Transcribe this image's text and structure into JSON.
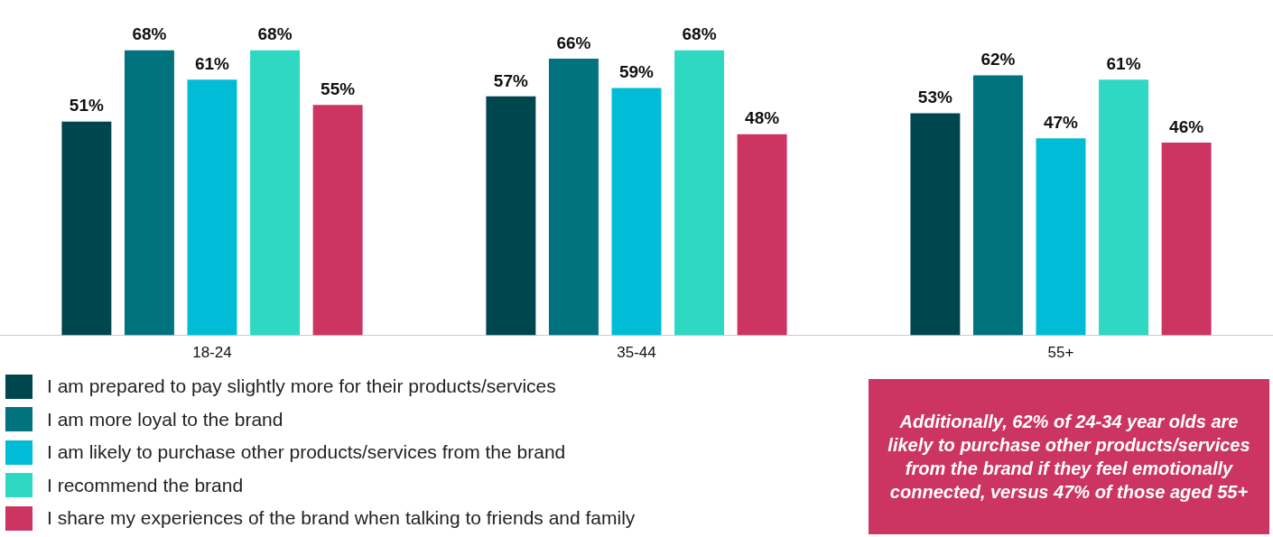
{
  "chart_data": {
    "type": "bar",
    "categories": [
      "18-24",
      "35-44",
      "55+"
    ],
    "series": [
      {
        "name": "I am prepared to pay slightly more for their products/services",
        "color": "#00464f",
        "values": [
          51,
          57,
          53
        ],
        "value_labels": [
          "51%",
          "57%",
          "53%"
        ]
      },
      {
        "name": "I am more loyal to the brand",
        "color": "#00737f",
        "values": [
          68,
          66,
          62
        ],
        "value_labels": [
          "68%",
          "66%",
          "62%"
        ]
      },
      {
        "name": "I am likely to purchase other products/services from the brand",
        "color": "#00bcd6",
        "values": [
          61,
          59,
          47
        ],
        "value_labels": [
          "61%",
          "59%",
          "47%"
        ]
      },
      {
        "name": "I recommend the brand",
        "color": "#2ed8c3",
        "values": [
          68,
          68,
          61
        ],
        "value_labels": [
          "68%",
          "68%",
          "61%"
        ]
      },
      {
        "name": "I share my experiences of the brand when talking to friends and family",
        "color": "#cc3462",
        "values": [
          55,
          48,
          46
        ],
        "value_labels": [
          "55%",
          "48%",
          "46%"
        ]
      }
    ],
    "legend": "bottom",
    "annotations": [
      "Additionally, 62% of 24-34 year olds are likely to purchase other products/services from the brand if they feel emotionally connected, versus 47% of those aged 55+"
    ]
  }
}
